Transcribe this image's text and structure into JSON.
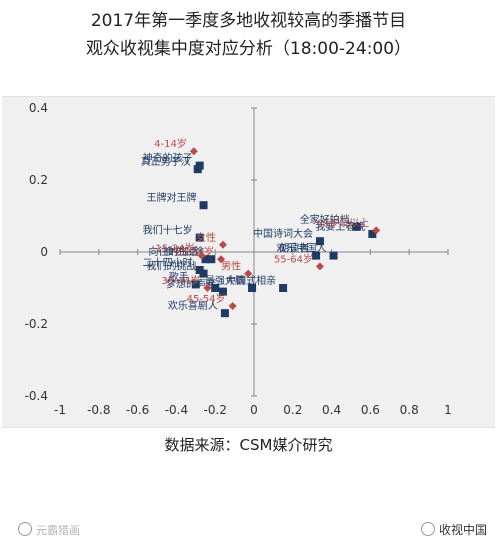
{
  "title_line1": "2017年第一季度多地收视较高的季播节目",
  "title_line2": "观众收视集中度对应分析（18:00-24:00）",
  "source": "数据来源：CSM媒介研究",
  "watermark_left": "元霸猎画",
  "watermark_right": "收视中国",
  "colors": {
    "program": "#1f3b63",
    "audience": "#b94a48",
    "axis": "#888888"
  },
  "chart_data": {
    "type": "scatter",
    "xlim": [
      -1,
      1
    ],
    "ylim": [
      -0.4,
      0.4
    ],
    "x_ticks": [
      -1,
      -0.8,
      -0.6,
      -0.4,
      -0.2,
      0,
      0.2,
      0.4,
      0.6,
      0.8,
      1
    ],
    "y_ticks": [
      -0.4,
      -0.2,
      0,
      0.2,
      0.4
    ],
    "grid": false,
    "series": [
      {
        "marker": "square",
        "color": "#1f3b63",
        "points": [
          {
            "x": -0.28,
            "y": 0.24,
            "label": "神奇的孩子"
          },
          {
            "x": -0.29,
            "y": 0.23,
            "label": "真正男子汉"
          },
          {
            "x": -0.26,
            "y": 0.13,
            "label": "王牌对王牌"
          },
          {
            "x": -0.28,
            "y": 0.04,
            "label": "我们十七岁"
          },
          {
            "x": -0.25,
            "y": -0.02,
            "label": "向往的生活"
          },
          {
            "x": -0.22,
            "y": -0.02,
            "label": "食在囧途"
          },
          {
            "x": -0.28,
            "y": -0.05,
            "label": "二十四小时"
          },
          {
            "x": -0.26,
            "y": -0.06,
            "label": "我们的挑战"
          },
          {
            "x": -0.3,
            "y": -0.09,
            "label": "歌手"
          },
          {
            "x": -0.2,
            "y": -0.1,
            "label": ""
          },
          {
            "x": -0.16,
            "y": -0.11,
            "label": "梦想的声音"
          },
          {
            "x": -0.01,
            "y": -0.1,
            "label": "最强大脑"
          },
          {
            "x": -0.15,
            "y": -0.17,
            "label": "欢乐喜剧人"
          },
          {
            "x": 0.15,
            "y": -0.1,
            "label": "中国式相亲"
          },
          {
            "x": 0.34,
            "y": 0.03,
            "label": "中国诗词大会"
          },
          {
            "x": 0.32,
            "y": -0.01,
            "label": "朗读者"
          },
          {
            "x": 0.41,
            "y": -0.01,
            "label": "欢乐中国人"
          },
          {
            "x": 0.53,
            "y": 0.07,
            "label": "全家好拍档"
          },
          {
            "x": 0.61,
            "y": 0.05,
            "label": "我要上春晚"
          }
        ]
      },
      {
        "marker": "diamond",
        "color": "#b94a48",
        "points": [
          {
            "x": -0.31,
            "y": 0.28,
            "label": "4-14岁"
          },
          {
            "x": -0.27,
            "y": -0.01,
            "label": "15-24岁"
          },
          {
            "x": -0.16,
            "y": 0.02,
            "label": "女性"
          },
          {
            "x": -0.17,
            "y": -0.02,
            "label": "25-34岁"
          },
          {
            "x": -0.03,
            "y": -0.06,
            "label": "男性"
          },
          {
            "x": -0.24,
            "y": -0.1,
            "label": "35-44岁"
          },
          {
            "x": -0.11,
            "y": -0.15,
            "label": "45-54岁"
          },
          {
            "x": 0.34,
            "y": -0.04,
            "label": "55-64岁"
          },
          {
            "x": 0.63,
            "y": 0.06,
            "label": "65岁及以上"
          }
        ]
      }
    ]
  }
}
